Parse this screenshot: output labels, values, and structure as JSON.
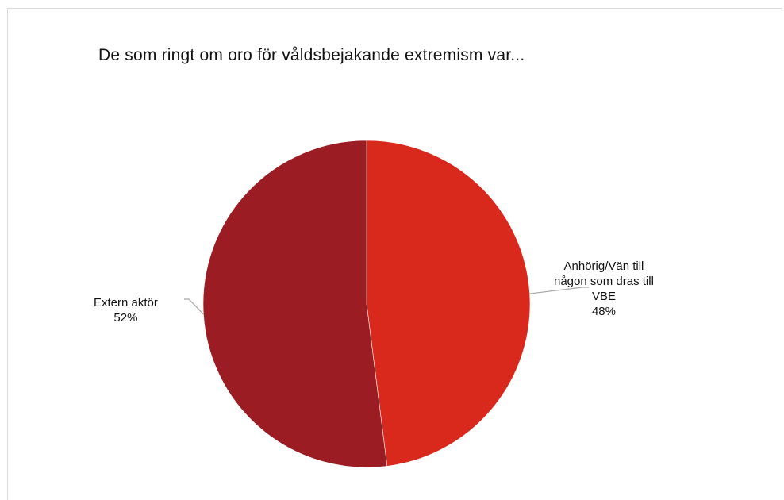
{
  "chart_data": {
    "type": "pie",
    "title": "De som ringt om oro för våldsbejakande extremism var...",
    "slices": [
      {
        "label_lines": [
          "Anhörig/Vän till",
          "någon som dras till",
          "VBE"
        ],
        "value": 48,
        "value_label": "48%",
        "color": "#d9291c"
      },
      {
        "label_lines": [
          "Extern aktör"
        ],
        "value": 52,
        "value_label": "52%",
        "color": "#9b1c23"
      }
    ],
    "start_angle_deg": 0,
    "direction": "clockwise"
  }
}
